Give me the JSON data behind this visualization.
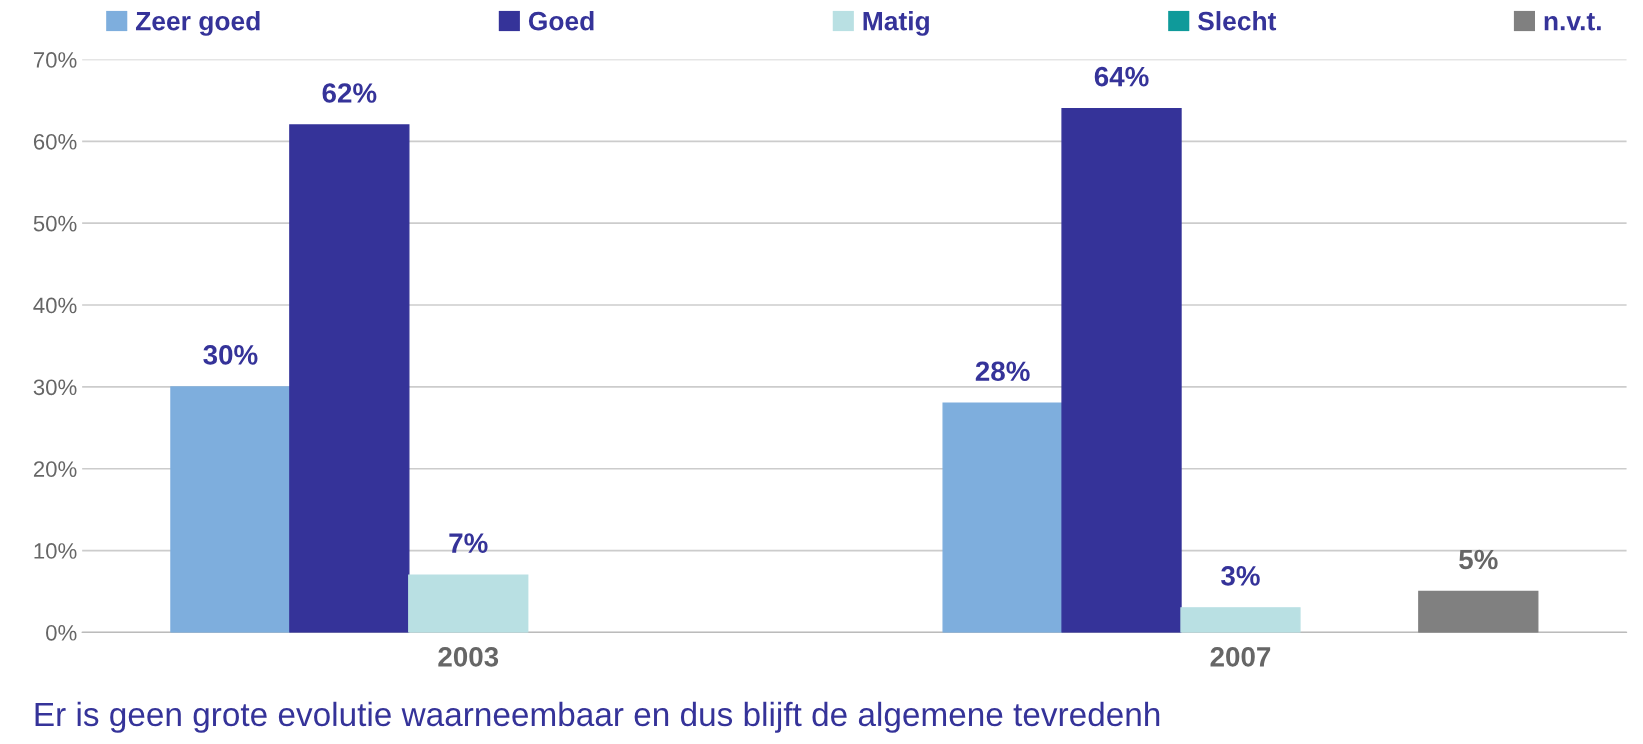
{
  "chart_data": {
    "type": "bar",
    "categories": [
      "2003",
      "2007"
    ],
    "series": [
      {
        "name": "Zeer goed",
        "color": "#7eaedd",
        "values": [
          30,
          28
        ],
        "value_labels": [
          "30%",
          "28%"
        ]
      },
      {
        "name": "Goed",
        "color": "#353399",
        "values": [
          62,
          64
        ],
        "value_labels": [
          "62%",
          "64%"
        ]
      },
      {
        "name": "Matig",
        "color": "#b9e0e3",
        "values": [
          7,
          3
        ],
        "value_labels": [
          "7%",
          "3%"
        ]
      },
      {
        "name": "Slecht",
        "color": "#0f9a9a",
        "values": [
          null,
          null
        ],
        "value_labels": [
          null,
          null
        ]
      },
      {
        "name": "n.v.t.",
        "color": "#808080",
        "values": [
          null,
          5
        ],
        "value_labels": [
          null,
          "5%"
        ]
      }
    ],
    "ylim": [
      0,
      70
    ],
    "yticks": [
      {
        "value": 0,
        "label": "0%"
      },
      {
        "value": 10,
        "label": "10%"
      },
      {
        "value": 20,
        "label": "20%"
      },
      {
        "value": 30,
        "label": "30%"
      },
      {
        "value": 40,
        "label": "40%"
      },
      {
        "value": 50,
        "label": "50%"
      },
      {
        "value": 60,
        "label": "60%"
      },
      {
        "value": 70,
        "label": "70%"
      }
    ],
    "grid": "y",
    "legend": "top",
    "annotations": [
      "Er is geen grote evolutie waarneembaar en dus blijft de algemene tevredenh"
    ]
  }
}
